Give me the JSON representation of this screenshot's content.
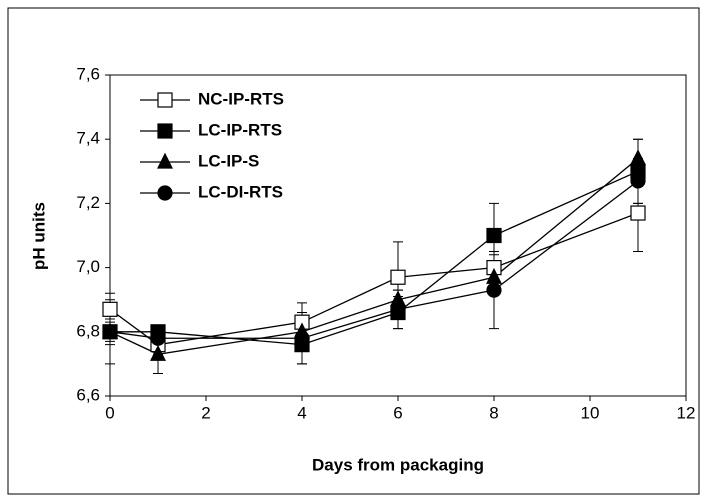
{
  "chart_data": {
    "type": "line",
    "ylabel": "pH units",
    "xlabel": "Days from packaging",
    "x": [
      0,
      1,
      4,
      6,
      8,
      11
    ],
    "xlim": [
      0,
      12
    ],
    "xticks": [
      0,
      2,
      4,
      6,
      8,
      10,
      12
    ],
    "ylim": [
      6.6,
      7.6
    ],
    "yticks": [
      {
        "value": 6.6,
        "label": "6,6"
      },
      {
        "value": 6.8,
        "label": "6,8"
      },
      {
        "value": 7.0,
        "label": "7,0"
      },
      {
        "value": 7.2,
        "label": "7,2"
      },
      {
        "value": 7.4,
        "label": "7,4"
      },
      {
        "value": 7.6,
        "label": "7,6"
      }
    ],
    "legend": "top-left",
    "series": [
      {
        "name": "NC-IP-RTS",
        "color": "#000000",
        "marker": "square-open",
        "values": [
          6.87,
          6.76,
          6.83,
          6.97,
          7.0,
          7.17
        ],
        "errors": [
          0.05,
          0.03,
          0.06,
          0.11,
          0.04,
          0.12
        ]
      },
      {
        "name": "LC-IP-RTS",
        "color": "#000000",
        "marker": "square",
        "values": [
          6.8,
          6.8,
          6.76,
          6.86,
          7.1,
          7.3
        ],
        "errors": [
          0.03,
          0.02,
          0.06,
          0.05,
          0.1,
          0.1
        ]
      },
      {
        "name": "LC-IP-S",
        "color": "#000000",
        "marker": "triangle",
        "values": [
          6.8,
          6.73,
          6.8,
          6.9,
          6.97,
          7.34
        ],
        "errors": [
          0.04,
          0.06,
          0.06,
          0.03,
          0.04,
          0.06
        ]
      },
      {
        "name": "LC-DI-RTS",
        "color": "#000000",
        "marker": "circle",
        "values": [
          6.8,
          6.78,
          6.78,
          6.87,
          6.93,
          7.27
        ],
        "errors": [
          0.1,
          0.03,
          0.08,
          0.06,
          0.12,
          0.07
        ]
      }
    ]
  }
}
